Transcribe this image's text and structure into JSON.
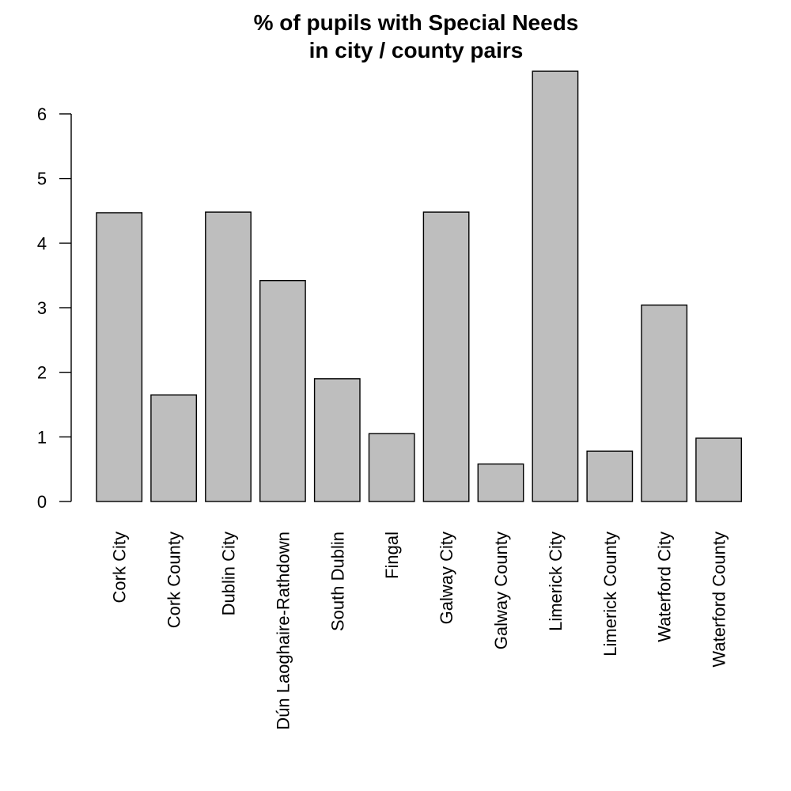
{
  "chart_data": {
    "type": "bar",
    "title": "% of pupils with Special Needs\nin city / county pairs",
    "title_lines": [
      "% of pupils with Special Needs",
      "in city / county pairs"
    ],
    "xlabel": "",
    "ylabel": "",
    "categories": [
      "Cork City",
      "Cork County",
      "Dublin City",
      "Dún Laoghaire-Rathdown",
      "South Dublin",
      "Fingal",
      "Galway City",
      "Galway County",
      "Limerick City",
      "Limerick County",
      "Waterford City",
      "Waterford County"
    ],
    "values": [
      4.47,
      1.65,
      4.48,
      3.42,
      1.9,
      1.05,
      4.48,
      0.58,
      6.66,
      0.78,
      3.04,
      0.98
    ],
    "ylim": [
      0,
      6.7
    ],
    "yticks": [
      0,
      1,
      2,
      3,
      4,
      5,
      6
    ],
    "grid": false,
    "legend": null,
    "bar_color": "#bebebe",
    "bar_border_color": "#000000",
    "x_label_orientation": "vertical"
  }
}
